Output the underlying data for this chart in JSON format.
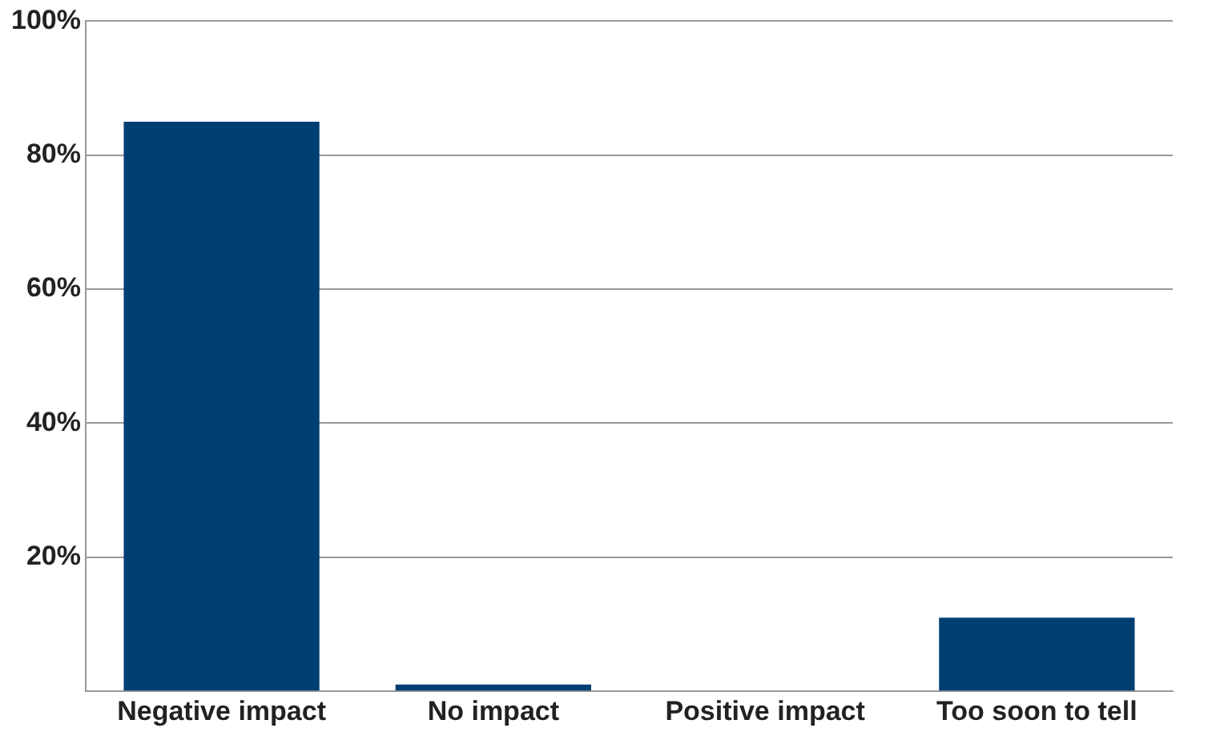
{
  "chart_data": {
    "type": "bar",
    "categories": [
      "Negative impact",
      "No impact",
      "Positive impact",
      "Too soon to tell"
    ],
    "values": [
      85,
      1,
      0,
      11
    ],
    "color": "#003f72",
    "ylim": [
      0,
      100
    ],
    "yticks": [
      {
        "value": 0,
        "label": null
      },
      {
        "value": 20,
        "label": "20%"
      },
      {
        "value": 40,
        "label": "40%"
      },
      {
        "value": 60,
        "label": "60%"
      },
      {
        "value": 80,
        "label": "80%"
      },
      {
        "value": 100,
        "label": "100%"
      }
    ],
    "grid": "y",
    "legend": false
  }
}
